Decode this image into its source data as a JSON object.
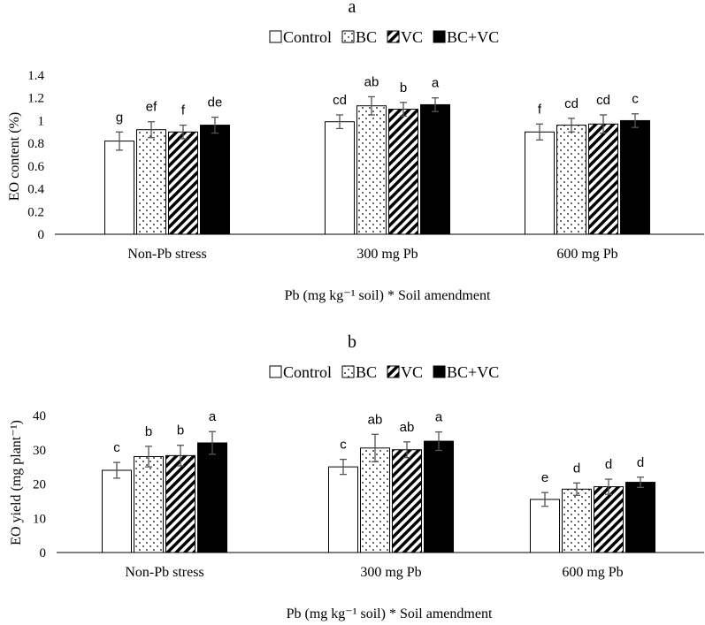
{
  "chart_data": [
    {
      "type": "bar",
      "panel_label": "a",
      "categories": [
        "Non-Pb stress",
        "300 mg Pb",
        "600 mg Pb"
      ],
      "series": [
        {
          "name": "Control",
          "values": [
            0.82,
            0.99,
            0.9
          ],
          "errors": [
            0.08,
            0.06,
            0.07
          ],
          "letters": [
            "g",
            "cd",
            "f"
          ],
          "pattern": "open"
        },
        {
          "name": "BC",
          "values": [
            0.92,
            1.13,
            0.96
          ],
          "errors": [
            0.07,
            0.08,
            0.06
          ],
          "letters": [
            "ef",
            "ab",
            "cd"
          ],
          "pattern": "dots"
        },
        {
          "name": "VC",
          "values": [
            0.9,
            1.1,
            0.97
          ],
          "errors": [
            0.06,
            0.06,
            0.08
          ],
          "letters": [
            "f",
            "b",
            "cd"
          ],
          "pattern": "stripes"
        },
        {
          "name": "BC+VC",
          "values": [
            0.96,
            1.14,
            1.0
          ],
          "errors": [
            0.07,
            0.06,
            0.06
          ],
          "letters": [
            "de",
            "a",
            "c"
          ],
          "pattern": "solid"
        }
      ],
      "ylabel": "EO content  (%)",
      "xlabel": "Pb (mg kg⁻¹ soil) * Soil amendment",
      "ylim": [
        0,
        1.4
      ],
      "yticks": [
        "0",
        "0.2",
        "0.4",
        "0.6",
        "0.8",
        "1",
        "1.2",
        "1.4"
      ],
      "grid": false,
      "legend": "top-center"
    },
    {
      "type": "bar",
      "panel_label": "b",
      "categories": [
        "Non-Pb stress",
        "300 mg Pb",
        "600 mg Pb"
      ],
      "series": [
        {
          "name": "Control",
          "values": [
            24,
            25,
            15.5
          ],
          "errors": [
            2.3,
            2.2,
            2.0
          ],
          "letters": [
            "c",
            "c",
            "e"
          ],
          "pattern": "open"
        },
        {
          "name": "BC",
          "values": [
            28,
            30.5,
            18.5
          ],
          "errors": [
            3.0,
            4.0,
            1.8
          ],
          "letters": [
            "b",
            "ab",
            "d"
          ],
          "pattern": "dots"
        },
        {
          "name": "VC",
          "values": [
            28.3,
            30,
            19.2
          ],
          "errors": [
            3.0,
            2.3,
            2.2
          ],
          "letters": [
            "b",
            "ab",
            "d"
          ],
          "pattern": "stripes"
        },
        {
          "name": "BC+VC",
          "values": [
            32,
            32.5,
            20.5
          ],
          "errors": [
            3.3,
            2.7,
            1.5
          ],
          "letters": [
            "a",
            "a",
            "d"
          ],
          "pattern": "solid"
        }
      ],
      "ylabel": "EO yield (mg plant⁻¹)",
      "xlabel": "Pb (mg kg⁻¹ soil) * Soil amendment",
      "ylim": [
        0,
        40
      ],
      "yticks": [
        "0",
        "10",
        "20",
        "30",
        "40"
      ],
      "grid": false,
      "legend": "top-center"
    }
  ]
}
